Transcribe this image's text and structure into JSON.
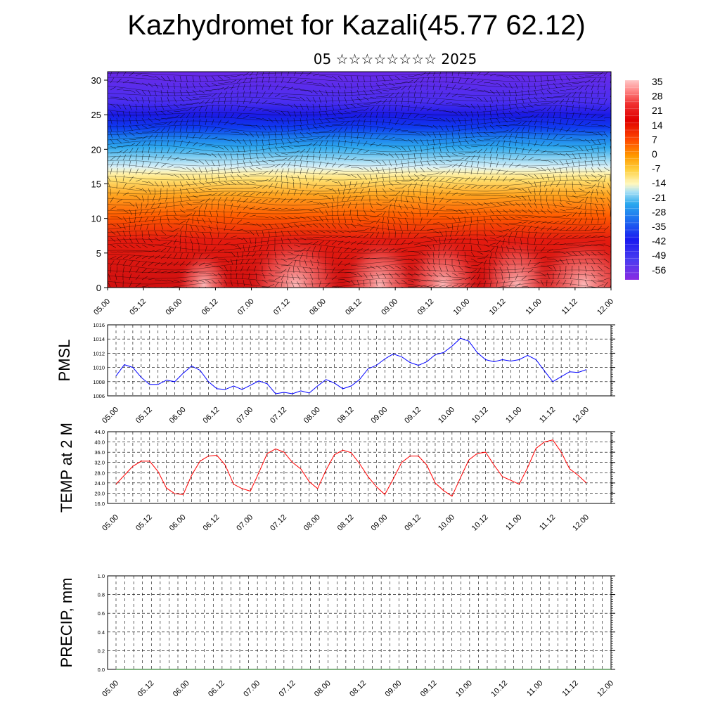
{
  "title": "Kazhydromet for Kazali(45.77 62.12)",
  "subtitle": "05 ☆☆☆☆☆☆☆☆ 2025",
  "chart_data": [
    {
      "type": "heatmap",
      "description_key": "temperature-wind cross-section",
      "ylim": [
        0,
        30
      ],
      "yticks": [
        "0",
        "5",
        "10",
        "15",
        "20",
        "25",
        "30"
      ],
      "xticks": [
        "05.00",
        "05.12",
        "06.00",
        "06.12",
        "07.00",
        "07.12",
        "08.00",
        "08.12",
        "09.00",
        "09.12",
        "10.00",
        "10.12",
        "11.00",
        "11.12",
        "12.00"
      ],
      "colorbar_labels": [
        "35",
        "28",
        "21",
        "14",
        "7",
        "0",
        "-7",
        "-14",
        "-21",
        "-28",
        "-35",
        "-42",
        "-49",
        "-56"
      ],
      "colorbar_range": [
        -60,
        40
      ]
    },
    {
      "type": "line",
      "ylabel": "PMSL",
      "ylim": [
        1006,
        1016
      ],
      "yticks": [
        "1006",
        "1008",
        "1010",
        "1012",
        "1014",
        "1016"
      ],
      "xticks": [
        "05.00",
        "05.12",
        "06.00",
        "06.12",
        "07.00",
        "07.12",
        "08.00",
        "08.12",
        "09.00",
        "09.12",
        "10.00",
        "10.12",
        "11.00",
        "11.12",
        "12.00"
      ],
      "color": "#0000ff",
      "values": [
        1008.8,
        1010.4,
        1010.0,
        1008.6,
        1007.6,
        1007.6,
        1008.2,
        1008.0,
        1009.2,
        1010.2,
        1009.6,
        1008.0,
        1007.0,
        1006.9,
        1007.4,
        1006.9,
        1007.5,
        1008.1,
        1007.7,
        1006.3,
        1006.5,
        1006.3,
        1006.7,
        1006.4,
        1007.4,
        1008.3,
        1007.8,
        1007.0,
        1007.4,
        1008.3,
        1009.8,
        1010.3,
        1011.2,
        1011.9,
        1011.5,
        1010.7,
        1010.3,
        1010.8,
        1011.8,
        1012.1,
        1013.0,
        1014.1,
        1013.7,
        1012.1,
        1011.1,
        1010.8,
        1011.1,
        1010.9,
        1011.1,
        1011.7,
        1011.1,
        1009.5,
        1008.0,
        1008.7,
        1009.4,
        1009.3,
        1009.7
      ]
    },
    {
      "type": "line",
      "ylabel": "TEMP at 2 M",
      "ylim": [
        16,
        44
      ],
      "yticks": [
        "16.0",
        "20.0",
        "24.0",
        "28.0",
        "32.0",
        "36.0",
        "40.0",
        "44.0"
      ],
      "xticks": [
        "05.00",
        "05.12",
        "06.00",
        "06.12",
        "07.00",
        "07.12",
        "08.00",
        "08.12",
        "09.00",
        "09.12",
        "10.00",
        "10.12",
        "11.00",
        "11.12",
        "12.00"
      ],
      "color": "#ff0000",
      "values": [
        23.5,
        27.0,
        30.5,
        32.5,
        32.5,
        28.5,
        22.0,
        19.8,
        19.5,
        27.0,
        32.5,
        34.5,
        34.8,
        31.0,
        23.5,
        21.8,
        20.8,
        28.0,
        35.5,
        37.3,
        36.0,
        32.0,
        29.5,
        24.5,
        21.8,
        29.0,
        35.0,
        36.8,
        35.8,
        31.5,
        26.5,
        22.5,
        19.5,
        25.5,
        32.0,
        34.5,
        34.5,
        31.0,
        24.0,
        21.0,
        18.8,
        26.0,
        33.0,
        35.5,
        36.0,
        31.0,
        26.5,
        25.0,
        23.5,
        30.0,
        37.5,
        40.0,
        40.8,
        36.0,
        29.5,
        27.0,
        24.0
      ]
    },
    {
      "type": "line",
      "ylabel": "PRECIP, mm",
      "ylim": [
        0,
        1
      ],
      "yticks": [
        "0.0",
        "0.2",
        "0.4",
        "0.6",
        "0.8",
        "1.0"
      ],
      "xticks": [
        "05.00",
        "05.12",
        "06.00",
        "06.12",
        "07.00",
        "07.12",
        "08.00",
        "08.12",
        "09.00",
        "09.12",
        "10.00",
        "10.12",
        "11.00",
        "11.12",
        "12.00"
      ],
      "color": "#006400",
      "values": [
        0,
        0,
        0,
        0,
        0,
        0,
        0,
        0,
        0,
        0,
        0,
        0,
        0,
        0,
        0,
        0,
        0,
        0,
        0,
        0,
        0,
        0,
        0,
        0,
        0,
        0,
        0,
        0,
        0,
        0,
        0,
        0,
        0,
        0,
        0,
        0,
        0,
        0,
        0,
        0,
        0,
        0,
        0,
        0,
        0,
        0,
        0,
        0,
        0,
        0,
        0,
        0,
        0,
        0,
        0,
        0,
        0
      ]
    }
  ]
}
